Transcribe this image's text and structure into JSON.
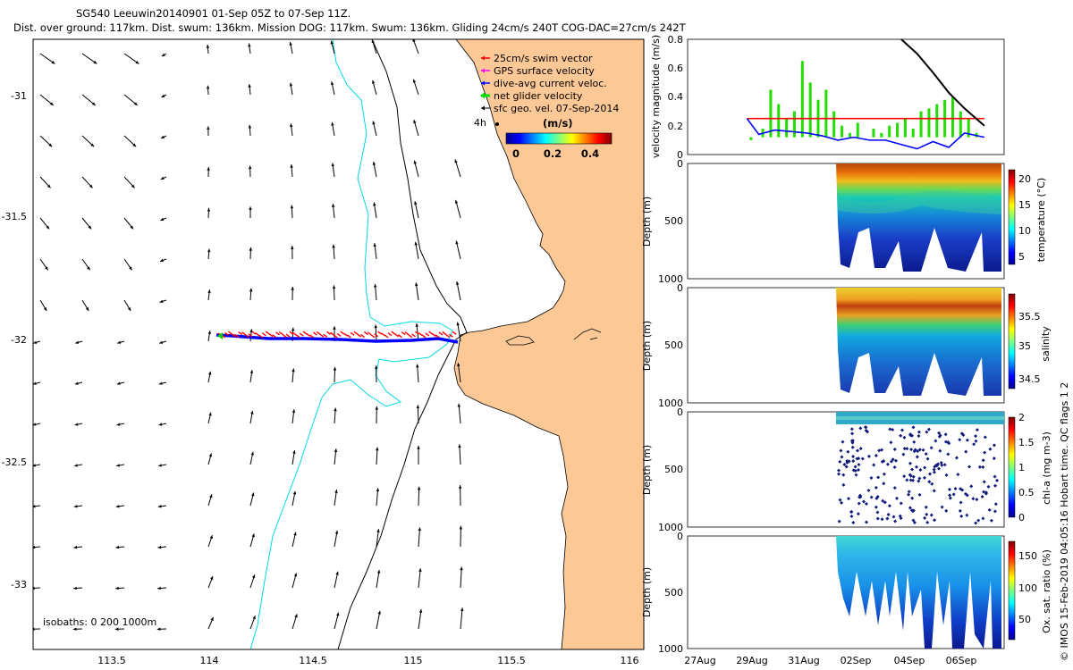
{
  "header": {
    "title_line1": "SG540 Leeuwin20140901 01-Sep 05Z to 07-Sep 11Z.",
    "title_line2": "Dist. over ground: 117km. Dist. swum: 136km. Mission DOG: 117km. Swum: 136km. Gliding 24cm/s 240T COG-DAC=27cm/s 242T"
  },
  "footer_note": "© IMOS 15-Feb-2019 04:05:16 Hobart time. QC flags 1  2",
  "colors": {
    "land": "#fcc896",
    "swim_vector": "#ff0000",
    "gps_surface": "#ff00ff",
    "dive_avg": "#0000ff",
    "net_glider": "#00dd00",
    "surface_geo": "#000000",
    "isobath_200": "#00d8e6",
    "isobath_1000": "#000000"
  },
  "map": {
    "x_ticks": [
      "113.5",
      "114",
      "114.5",
      "115",
      "115.5",
      "116"
    ],
    "y_ticks": [
      "-31",
      "-31.5",
      "-32",
      "-32.5",
      "-33"
    ],
    "legend": {
      "items": [
        "25cm/s swim vector",
        "GPS surface velocity",
        "dive-avg current veloc.",
        "net glider velocity",
        "sfc geo. vel. 07-Sep-2014"
      ],
      "colorbar_title": "(m/s)",
      "colorbar_ticks": [
        "0",
        "0.2",
        "0.4"
      ]
    },
    "time_marker": "4h",
    "isobath_note": "isobaths: 0   200  1000m"
  },
  "chart_data": [
    {
      "type": "line",
      "panel": "velocity",
      "ylabel": "velocity magnitude (m/s)",
      "ylim": [
        0,
        0.8
      ],
      "y_ticks": [
        "0",
        "0.2",
        "0.4",
        "0.6",
        "0.8"
      ],
      "x_ticks": [
        "27Aug",
        "29Aug",
        "31Aug",
        "02Sep",
        "04Sep",
        "06Sep"
      ],
      "series": [
        {
          "color": "#ff0000",
          "x": [
            1.5,
            7.5
          ],
          "values": [
            0.25,
            0.25
          ]
        },
        {
          "color": "#0000ff",
          "x": [
            1.5,
            1.8,
            2.2,
            2.6,
            3.0,
            3.4,
            3.8,
            4.2,
            4.6,
            5.0,
            5.4,
            5.8,
            6.2,
            6.6,
            7.0,
            7.5
          ],
          "values": [
            0.25,
            0.14,
            0.17,
            0.16,
            0.15,
            0.13,
            0.1,
            0.12,
            0.1,
            0.1,
            0.07,
            0.04,
            0.09,
            0.05,
            0.15,
            0.12
          ]
        },
        {
          "color": "#000000",
          "x": [
            5.4,
            5.8,
            6.2,
            6.6,
            7.0,
            7.5
          ],
          "values": [
            0.8,
            0.7,
            0.57,
            0.43,
            0.32,
            0.2
          ]
        }
      ],
      "bars": {
        "color": "#22dd00",
        "x": [
          1.6,
          1.9,
          2.1,
          2.3,
          2.5,
          2.7,
          2.9,
          3.1,
          3.3,
          3.5,
          3.7,
          3.9,
          4.1,
          4.3,
          4.5,
          4.7,
          4.9,
          5.1,
          5.3,
          5.5,
          5.7,
          5.9,
          6.1,
          6.3,
          6.5,
          6.7,
          6.9,
          7.1,
          7.3
        ],
        "values": [
          0.1,
          0.18,
          0.45,
          0.35,
          0.25,
          0.3,
          0.65,
          0.5,
          0.38,
          0.45,
          0.3,
          0.2,
          0.15,
          0.22,
          0.12,
          0.18,
          0.15,
          0.2,
          0.22,
          0.25,
          0.18,
          0.3,
          0.32,
          0.35,
          0.38,
          0.4,
          0.3,
          0.25,
          0.15
        ]
      }
    },
    {
      "type": "heatmap",
      "panel": "temperature",
      "ylabel": "Depth (m)",
      "ylim": [
        1000,
        0
      ],
      "y_ticks": [
        "0",
        "500",
        "1000"
      ],
      "colorbar_label": "temperature (°C)",
      "colorbar_range": [
        3,
        22
      ],
      "colorbar_ticks": [
        "5",
        "10",
        "15",
        "20"
      ]
    },
    {
      "type": "heatmap",
      "panel": "salinity",
      "ylabel": "Depth (m)",
      "ylim": [
        1000,
        0
      ],
      "y_ticks": [
        "0",
        "500",
        "1000"
      ],
      "colorbar_label": "salinity",
      "colorbar_range": [
        34.3,
        35.75
      ],
      "colorbar_ticks": [
        "34.5",
        "35",
        "35.5"
      ]
    },
    {
      "type": "scatter",
      "panel": "chlorophyll",
      "ylabel": "Depth (m)",
      "ylim": [
        1000,
        0
      ],
      "y_ticks": [
        "0",
        "500",
        "1000"
      ],
      "colorbar_label": "chl-a (mg m-3)",
      "colorbar_range": [
        0,
        2
      ],
      "colorbar_ticks": [
        "0",
        "0.5",
        "1",
        "1.5",
        "2"
      ]
    },
    {
      "type": "heatmap",
      "panel": "oxygen",
      "ylabel": "Depth (m)",
      "ylim": [
        1000,
        0
      ],
      "y_ticks": [
        "0",
        "500",
        "1000"
      ],
      "colorbar_label": "Ox. sat. ratio (%)",
      "colorbar_range": [
        20,
        180
      ],
      "colorbar_ticks": [
        "50",
        "100",
        "150"
      ]
    }
  ]
}
